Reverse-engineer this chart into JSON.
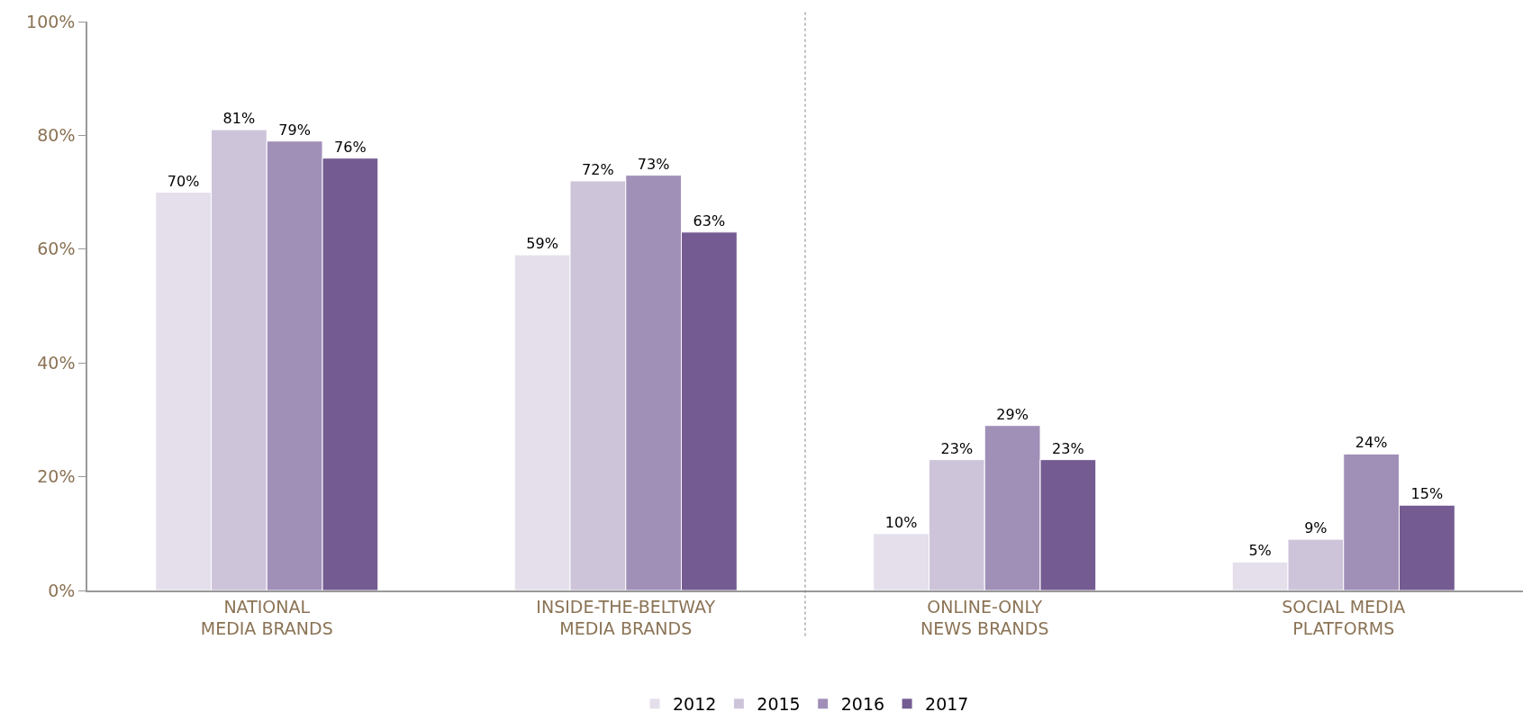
{
  "chart_data": {
    "type": "bar",
    "categories": [
      "NATIONAL\nMEDIA BRANDS",
      "INSIDE-THE-BELTWAY\nMEDIA BRANDS",
      "ONLINE-ONLY\nNEWS BRANDS",
      "SOCIAL MEDIA\nPLATFORMS"
    ],
    "series": [
      {
        "name": "2012",
        "color": "#e4dfeb",
        "values": [
          70,
          59,
          10,
          5
        ]
      },
      {
        "name": "2015",
        "color": "#cdc4da",
        "values": [
          81,
          72,
          23,
          9
        ]
      },
      {
        "name": "2016",
        "color": "#a08fb7",
        "values": [
          79,
          73,
          29,
          24
        ]
      },
      {
        "name": "2017",
        "color": "#745b91",
        "values": [
          76,
          63,
          23,
          15
        ]
      }
    ],
    "ylim": [
      0,
      100
    ],
    "yticks": [
      {
        "value": 0,
        "label": "0%"
      },
      {
        "value": 20,
        "label": "20%"
      },
      {
        "value": 40,
        "label": "40%"
      },
      {
        "value": 60,
        "label": "60%"
      },
      {
        "value": 80,
        "label": "80%"
      },
      {
        "value": 100,
        "label": "100%"
      }
    ],
    "value_labels": [
      [
        "70%",
        "59%",
        "10%",
        "5%"
      ],
      [
        "81%",
        "72%",
        "23%",
        "9%"
      ],
      [
        "79%",
        "73%",
        "29%",
        "24%"
      ],
      [
        "76%",
        "63%",
        "23%",
        "15%"
      ]
    ],
    "grid": false,
    "legend": "bottom"
  }
}
